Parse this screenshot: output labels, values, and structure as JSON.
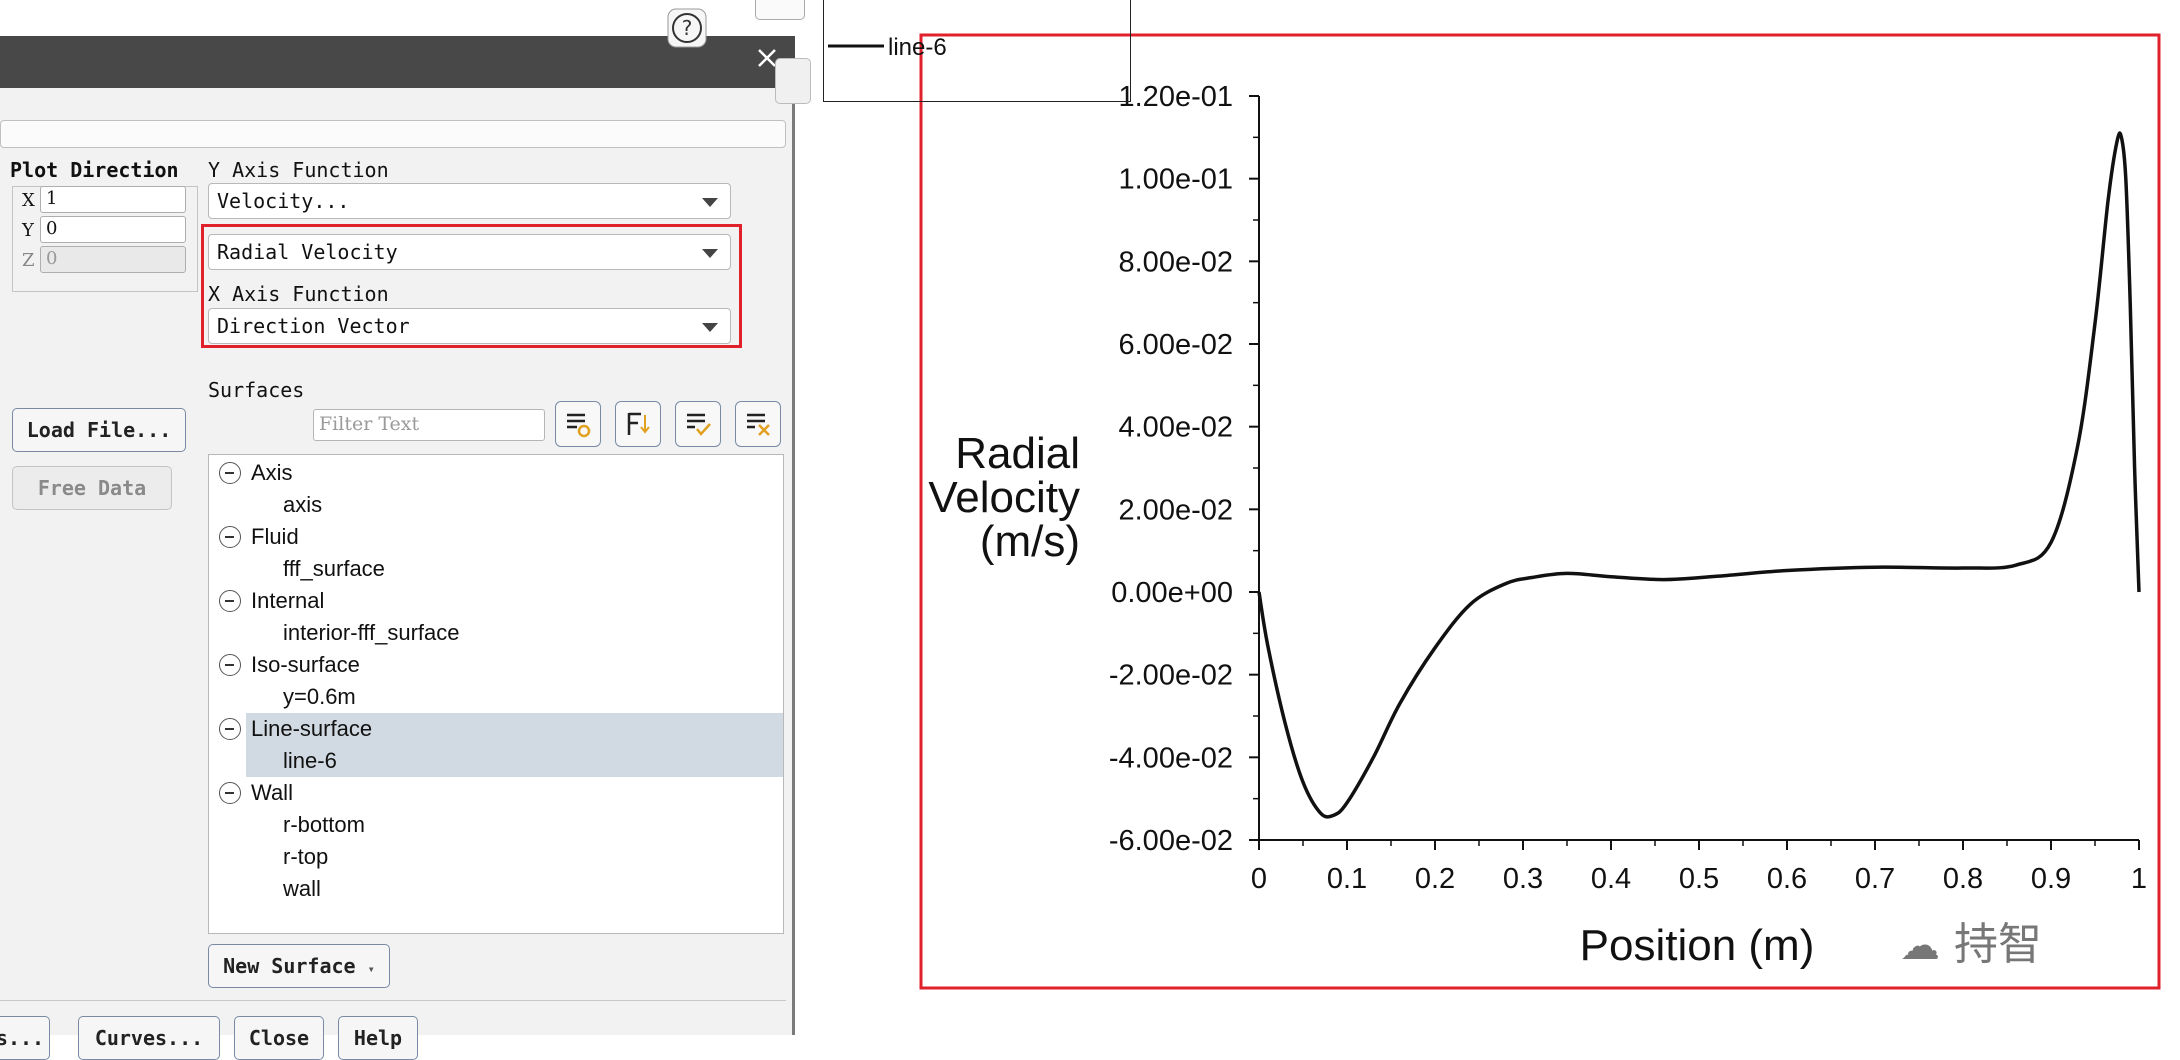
{
  "dialog": {
    "close_icon": "close-icon",
    "plot_direction": {
      "label": "Plot Direction",
      "x_label": "X",
      "x_value": "1",
      "y_label": "Y",
      "y_value": "0",
      "z_label": "Z",
      "z_value": "0"
    },
    "y_axis_function": {
      "label": "Y Axis Function",
      "category": "Velocity...",
      "value": "Radial Velocity"
    },
    "x_axis_function": {
      "label": "X Axis Function",
      "value": "Direction Vector"
    },
    "load_file_button": "Load File...",
    "free_data_button": "Free Data",
    "surfaces": {
      "label": "Surfaces",
      "filter_placeholder": "Filter Text",
      "groups": [
        {
          "name": "Axis",
          "items": [
            "axis"
          ]
        },
        {
          "name": "Fluid",
          "items": [
            "fff_surface"
          ]
        },
        {
          "name": "Internal",
          "items": [
            "interior-fff_surface"
          ]
        },
        {
          "name": "Iso-surface",
          "items": [
            "y=0.6m"
          ]
        },
        {
          "name": "Line-surface",
          "items": [
            "line-6"
          ]
        },
        {
          "name": "Wall",
          "items": [
            "r-bottom",
            "r-top",
            "wall"
          ]
        }
      ],
      "selected": "line-6"
    },
    "new_surface_button": "New Surface",
    "bottom_buttons": {
      "partial": "s...",
      "curves": "Curves...",
      "close": "Close",
      "help": "Help"
    }
  },
  "help_icon": "question-mark-icon",
  "chart_data": {
    "type": "line",
    "legend": [
      "line-6"
    ],
    "xlabel": "Position (m)",
    "ylabel": "Radial Velocity (m/s)",
    "xlim": [
      0,
      1
    ],
    "ylim": [
      -0.06,
      0.12
    ],
    "x_ticks": [
      "0",
      "0.1",
      "0.2",
      "0.3",
      "0.4",
      "0.5",
      "0.6",
      "0.7",
      "0.8",
      "0.9",
      "1"
    ],
    "y_ticks": [
      "-6.00e-02",
      "-4.00e-02",
      "-2.00e-02",
      "0.00e+00",
      "2.00e-02",
      "4.00e-02",
      "6.00e-02",
      "8.00e-02",
      "1.00e-01",
      "1.20e-01"
    ],
    "series": [
      {
        "name": "line-6",
        "x": [
          0,
          0.01,
          0.03,
          0.05,
          0.07,
          0.085,
          0.1,
          0.13,
          0.16,
          0.2,
          0.24,
          0.28,
          0.31,
          0.35,
          0.4,
          0.46,
          0.52,
          0.6,
          0.7,
          0.8,
          0.86,
          0.9,
          0.93,
          0.95,
          0.965,
          0.975,
          0.98,
          0.985,
          0.99,
          0.995,
          1.0
        ],
        "y": [
          0,
          -0.013,
          -0.032,
          -0.046,
          -0.0535,
          -0.054,
          -0.051,
          -0.04,
          -0.027,
          -0.0135,
          -0.003,
          0.002,
          0.0035,
          0.0045,
          0.0037,
          0.003,
          0.0038,
          0.0052,
          0.006,
          0.0058,
          0.0065,
          0.012,
          0.035,
          0.065,
          0.095,
          0.109,
          0.11,
          0.1,
          0.07,
          0.03,
          0.0
        ]
      }
    ]
  },
  "watermark": "持智"
}
